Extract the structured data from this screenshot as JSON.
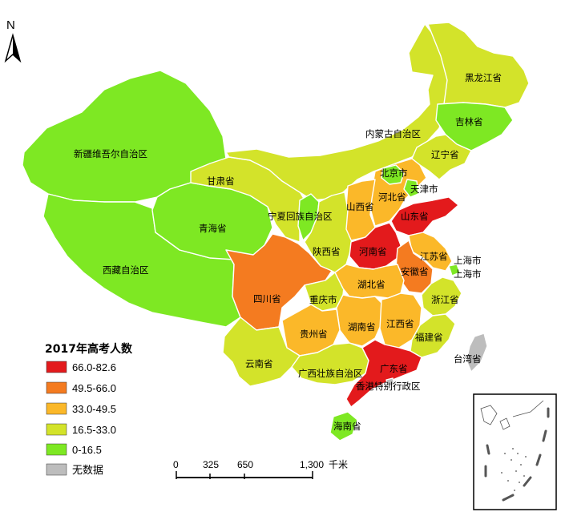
{
  "title": "2017年高考人数",
  "north": "N",
  "legend": {
    "title": "2017年高考人数",
    "items": [
      {
        "label": "66.0-82.6",
        "color": "#e31a1c"
      },
      {
        "label": "49.5-66.0",
        "color": "#f47b20"
      },
      {
        "label": "33.0-49.5",
        "color": "#fbb829"
      },
      {
        "label": "16.5-33.0",
        "color": "#d3e32a"
      },
      {
        "label": "0-16.5",
        "color": "#7ee823"
      },
      {
        "label": "无数据",
        "color": "#bdbdbd"
      }
    ]
  },
  "scale_bar": {
    "ticks": [
      "0",
      "325",
      "650",
      "1,300"
    ],
    "unit": "千米"
  },
  "provinces": [
    {
      "name": "新疆维吾尔自治区",
      "class": "0-16.5"
    },
    {
      "name": "西藏自治区",
      "class": "0-16.5"
    },
    {
      "name": "青海省",
      "class": "0-16.5"
    },
    {
      "name": "甘肃省",
      "class": "16.5-33.0"
    },
    {
      "name": "内蒙古自治区",
      "class": "16.5-33.0"
    },
    {
      "name": "黑龙江省",
      "class": "16.5-33.0"
    },
    {
      "name": "吉林省",
      "class": "0-16.5"
    },
    {
      "name": "辽宁省",
      "class": "16.5-33.0"
    },
    {
      "name": "北京市",
      "class": "0-16.5"
    },
    {
      "name": "天津市",
      "class": "0-16.5"
    },
    {
      "name": "河北省",
      "class": "33.0-49.5"
    },
    {
      "name": "山西省",
      "class": "33.0-49.5"
    },
    {
      "name": "山东省",
      "class": "66.0-82.6"
    },
    {
      "name": "宁夏回族自治区",
      "class": "0-16.5"
    },
    {
      "name": "陕西省",
      "class": "16.5-33.0"
    },
    {
      "name": "河南省",
      "class": "66.0-82.6"
    },
    {
      "name": "江苏省",
      "class": "33.0-49.5"
    },
    {
      "name": "安徽省",
      "class": "49.5-66.0"
    },
    {
      "name": "上海市",
      "class": "0-16.5"
    },
    {
      "name": "四川省",
      "class": "49.5-66.0"
    },
    {
      "name": "重庆市",
      "class": "16.5-33.0"
    },
    {
      "name": "湖北省",
      "class": "33.0-49.5"
    },
    {
      "name": "浙江省",
      "class": "16.5-33.0"
    },
    {
      "name": "湖南省",
      "class": "33.0-49.5"
    },
    {
      "name": "江西省",
      "class": "33.0-49.5"
    },
    {
      "name": "贵州省",
      "class": "33.0-49.5"
    },
    {
      "name": "福建省",
      "class": "16.5-33.0"
    },
    {
      "name": "云南省",
      "class": "16.5-33.0"
    },
    {
      "name": "广西壮族自治区",
      "class": "16.5-33.0"
    },
    {
      "name": "广东省",
      "class": "66.0-82.6"
    },
    {
      "name": "香港特别行政区",
      "class": "无数据"
    },
    {
      "name": "台湾省",
      "class": "无数据"
    },
    {
      "name": "海南省",
      "class": "0-16.5"
    }
  ]
}
